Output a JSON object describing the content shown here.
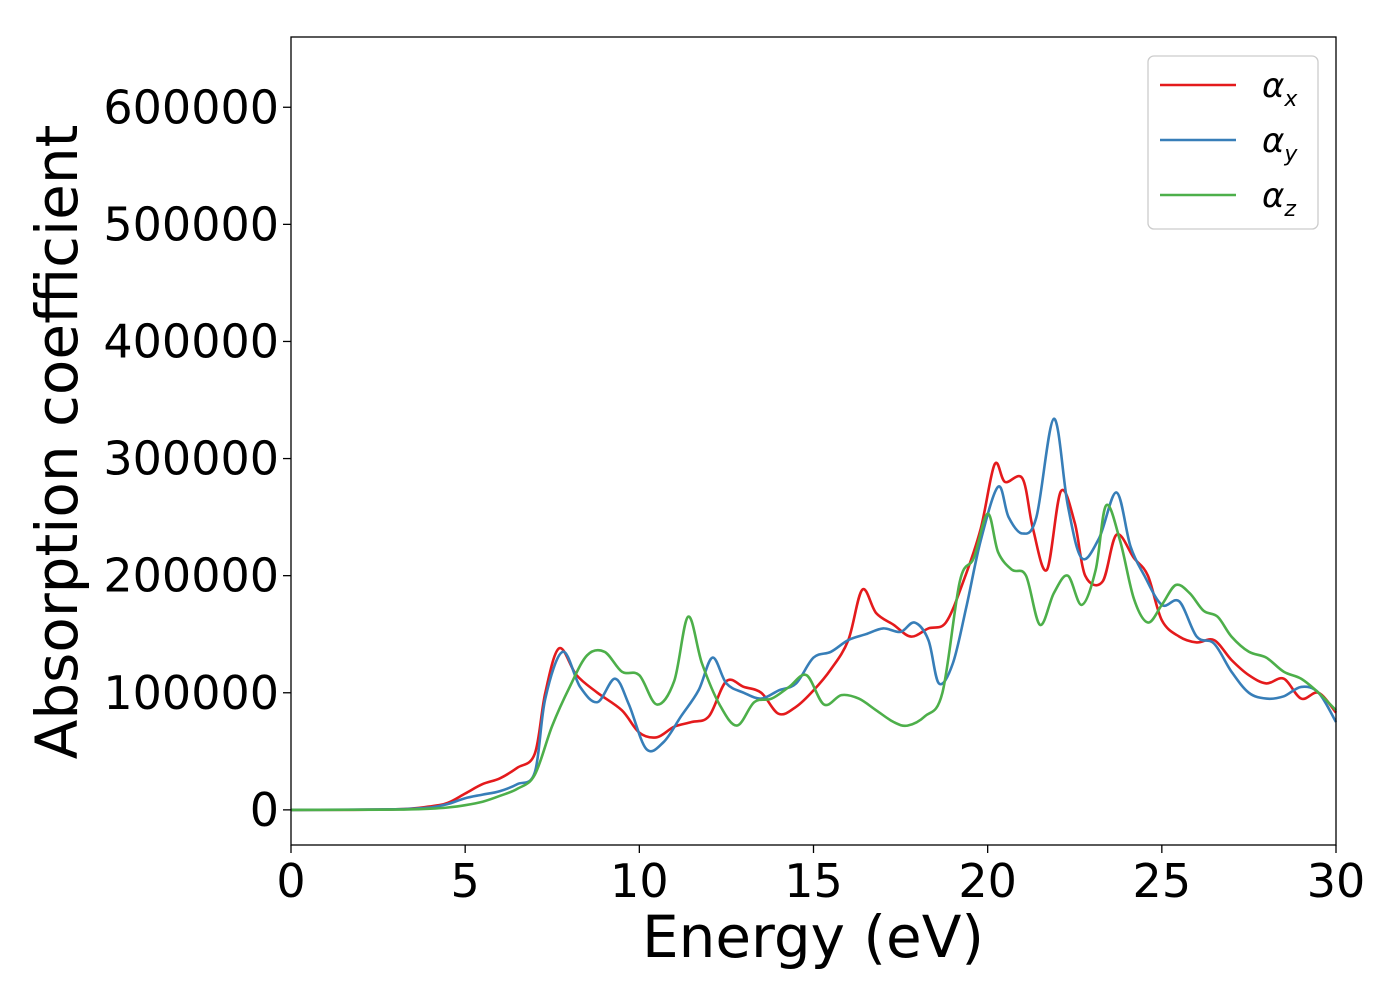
{
  "chart_data": {
    "type": "line",
    "xlabel": "Energy (eV)",
    "ylabel": "Absorption coefficient",
    "xlim": [
      0,
      30
    ],
    "ylim": [
      -30000,
      660000
    ],
    "xticks": [
      0,
      5,
      10,
      15,
      20,
      25,
      30
    ],
    "xtick_labels": [
      "0",
      "5",
      "10",
      "15",
      "20",
      "25",
      "30"
    ],
    "yticks": [
      0,
      100000,
      200000,
      300000,
      400000,
      500000,
      600000
    ],
    "ytick_labels": [
      "0",
      "100000",
      "200000",
      "300000",
      "400000",
      "500000",
      "600000"
    ],
    "grid": false,
    "legend_position": "top-right",
    "series": [
      {
        "name": "α_x",
        "symbol": "α",
        "subscript": "x",
        "color": "#e41a1c",
        "x": [
          0,
          3,
          4,
          4.5,
          5,
          5.5,
          6,
          6.5,
          7,
          7.3,
          7.7,
          8.2,
          8.8,
          9.5,
          10,
          10.5,
          11,
          11.5,
          12,
          12.5,
          13,
          13.5,
          14,
          14.5,
          15,
          15.5,
          16,
          16.4,
          16.8,
          17.3,
          17.8,
          18.3,
          18.8,
          19.3,
          19.8,
          20.2,
          20.5,
          21,
          21.3,
          21.7,
          22.1,
          22.5,
          22.8,
          23.3,
          23.7,
          24.2,
          24.6,
          25,
          25.5,
          26,
          26.5,
          27,
          27.5,
          28,
          28.5,
          29,
          29.5,
          30
        ],
        "y": [
          0,
          500,
          3000,
          6000,
          14000,
          22000,
          27000,
          36000,
          48000,
          100000,
          138000,
          115000,
          100000,
          85000,
          66000,
          62000,
          71000,
          75000,
          80000,
          110000,
          105000,
          100000,
          82000,
          88000,
          102000,
          120000,
          145000,
          188000,
          168000,
          158000,
          148000,
          155000,
          160000,
          195000,
          240000,
          295000,
          280000,
          283000,
          240000,
          205000,
          272000,
          245000,
          200000,
          195000,
          235000,
          215000,
          200000,
          162000,
          148000,
          143000,
          145000,
          128000,
          115000,
          108000,
          112000,
          95000,
          100000,
          83000
        ]
      },
      {
        "name": "α_y",
        "symbol": "α",
        "subscript": "y",
        "color": "#377eb8",
        "x": [
          0,
          3,
          4,
          4.5,
          5,
          5.5,
          6,
          6.5,
          7,
          7.3,
          7.8,
          8.3,
          8.8,
          9.3,
          9.7,
          10.2,
          10.7,
          11.2,
          11.7,
          12.1,
          12.5,
          13,
          13.5,
          14,
          14.5,
          15,
          15.5,
          16,
          16.5,
          17,
          17.5,
          17.9,
          18.3,
          18.6,
          19,
          19.4,
          19.8,
          20.3,
          20.6,
          21,
          21.4,
          21.9,
          22.3,
          22.7,
          23.2,
          23.7,
          24.1,
          24.5,
          25,
          25.5,
          26,
          26.5,
          27,
          27.5,
          28,
          28.5,
          29,
          29.5,
          30
        ],
        "y": [
          0,
          500,
          2000,
          5000,
          10000,
          13000,
          16000,
          22000,
          32000,
          95000,
          135000,
          105000,
          92000,
          112000,
          90000,
          52000,
          58000,
          80000,
          102000,
          130000,
          108000,
          100000,
          95000,
          102000,
          108000,
          130000,
          135000,
          145000,
          150000,
          155000,
          152000,
          160000,
          145000,
          108000,
          125000,
          175000,
          230000,
          276000,
          250000,
          236000,
          250000,
          334000,
          260000,
          215000,
          232000,
          271000,
          225000,
          200000,
          175000,
          178000,
          148000,
          142000,
          118000,
          100000,
          95000,
          97000,
          105000,
          100000,
          75000
        ]
      },
      {
        "name": "α_z",
        "symbol": "α",
        "subscript": "z",
        "color": "#4daf4a",
        "x": [
          0,
          3,
          4,
          4.5,
          5,
          5.5,
          6,
          6.5,
          7,
          7.5,
          8,
          8.5,
          9,
          9.5,
          10,
          10.5,
          11,
          11.4,
          11.8,
          12.3,
          12.8,
          13.3,
          13.8,
          14.3,
          14.8,
          15.3,
          15.8,
          16.3,
          16.8,
          17.3,
          17.7,
          18.2,
          18.7,
          19.2,
          19.6,
          20,
          20.3,
          20.7,
          21.1,
          21.5,
          21.9,
          22.3,
          22.7,
          23.1,
          23.4,
          23.8,
          24.2,
          24.6,
          25,
          25.4,
          25.8,
          26.2,
          26.6,
          27,
          27.5,
          28,
          28.5,
          29,
          29.5,
          30
        ],
        "y": [
          0,
          200,
          1000,
          2000,
          4000,
          7000,
          12000,
          18000,
          30000,
          72000,
          105000,
          132000,
          135000,
          118000,
          115000,
          90000,
          110000,
          165000,
          125000,
          90000,
          72000,
          92000,
          95000,
          105000,
          115000,
          90000,
          98000,
          95000,
          85000,
          75000,
          72000,
          80000,
          100000,
          195000,
          215000,
          253000,
          220000,
          205000,
          200000,
          158000,
          185000,
          200000,
          175000,
          205000,
          260000,
          230000,
          180000,
          160000,
          175000,
          192000,
          185000,
          170000,
          165000,
          148000,
          135000,
          130000,
          118000,
          112000,
          100000,
          85000
        ]
      }
    ]
  }
}
